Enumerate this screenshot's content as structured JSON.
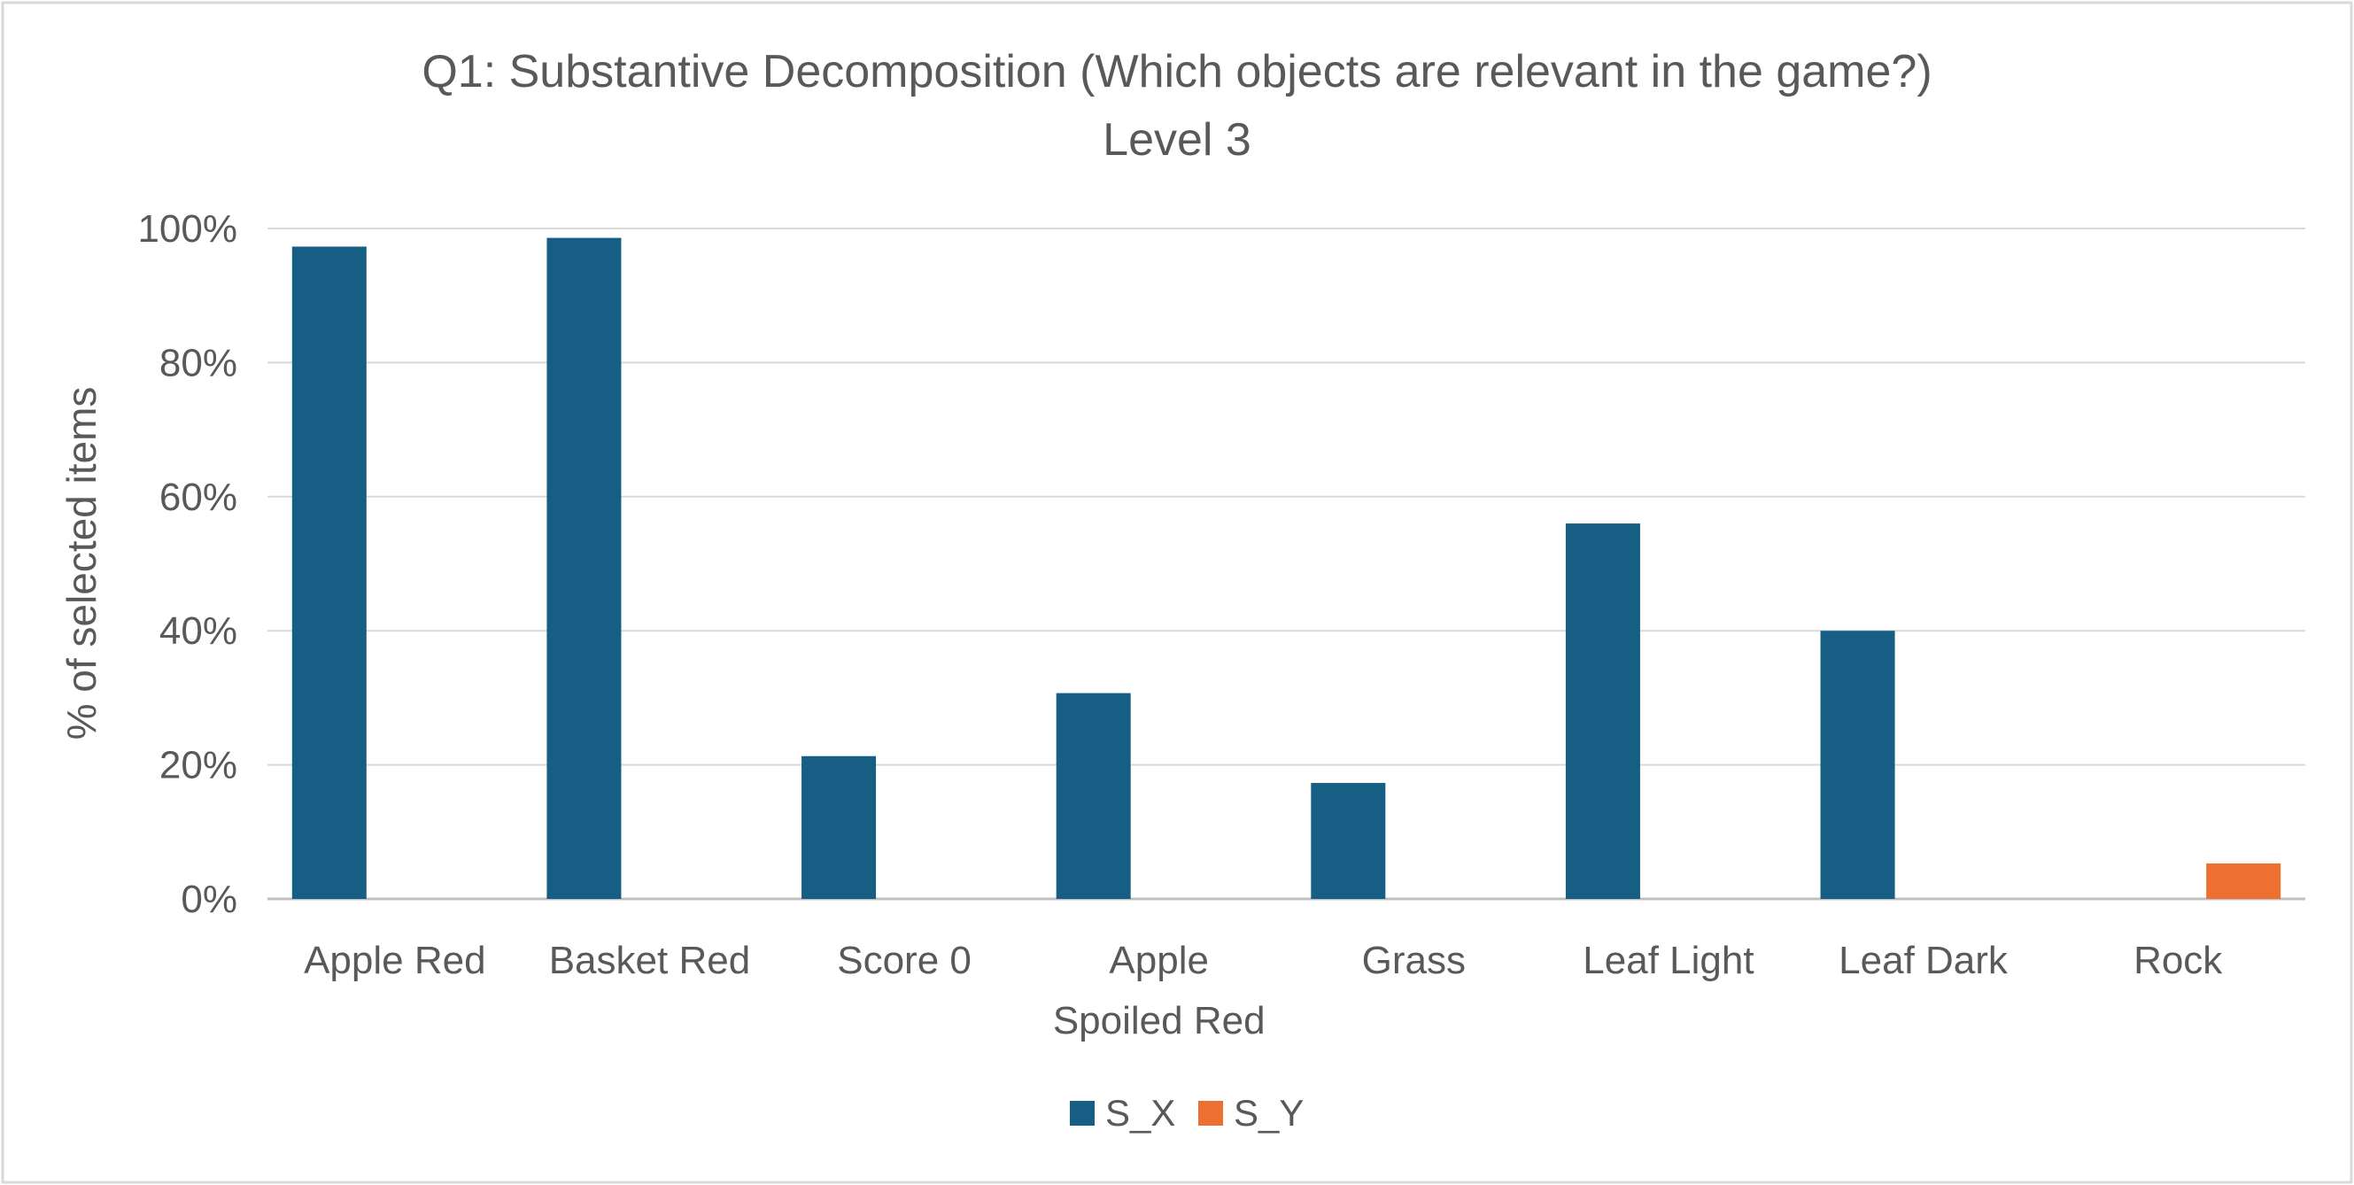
{
  "chart_data": {
    "type": "bar",
    "title": "Q1: Substantive Decomposition (Which objects are relevant in the game?)",
    "subtitle": "Level 3",
    "xlabel": "",
    "ylabel": "% of selected items",
    "ylim": [
      0,
      100
    ],
    "y_ticks": [
      "0%",
      "20%",
      "40%",
      "60%",
      "80%",
      "100%"
    ],
    "y_tick_values": [
      0,
      20,
      40,
      60,
      80,
      100
    ],
    "grid": true,
    "legend_position": "bottom",
    "categories": [
      [
        "Apple Red"
      ],
      [
        "Basket Red"
      ],
      [
        "Score 0"
      ],
      [
        "Apple",
        "Spoiled Red"
      ],
      [
        "Grass"
      ],
      [
        "Leaf Light"
      ],
      [
        "Leaf Dark"
      ],
      [
        "Rock"
      ]
    ],
    "series": [
      {
        "name": "S_X",
        "color": "#165e83",
        "values": [
          97.3,
          98.6,
          21.3,
          30.7,
          17.3,
          56.0,
          40.0,
          null
        ]
      },
      {
        "name": "S_Y",
        "color": "#ed7031",
        "values": [
          null,
          null,
          null,
          null,
          null,
          null,
          null,
          5.3
        ]
      }
    ]
  }
}
